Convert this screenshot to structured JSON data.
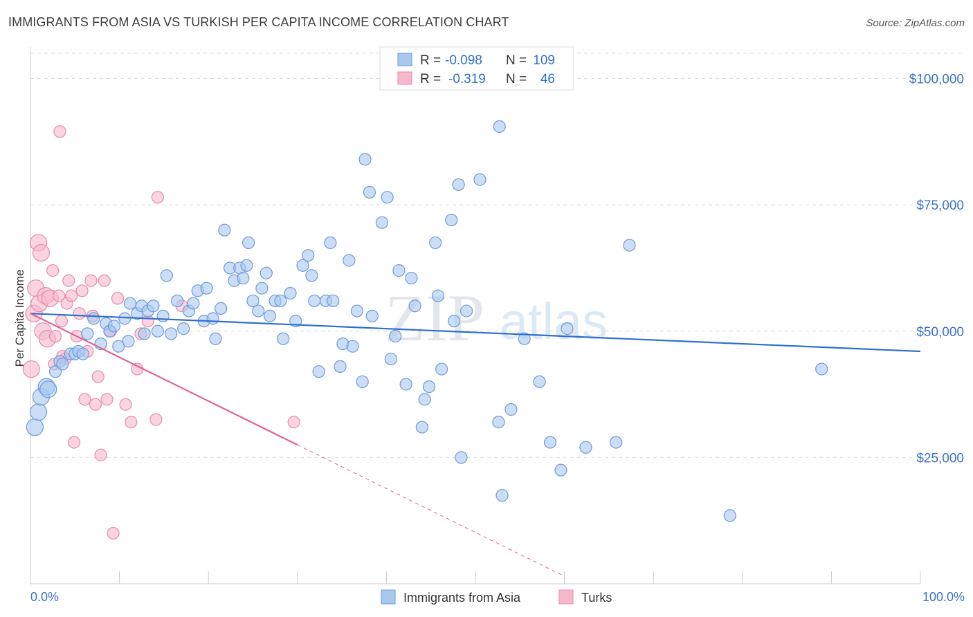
{
  "header": {
    "title": "IMMIGRANTS FROM ASIA VS TURKISH PER CAPITA INCOME CORRELATION CHART",
    "source": "Source: ZipAtlas.com"
  },
  "watermark": {
    "zip": "ZIP",
    "atlas": "atlas"
  },
  "colors": {
    "asia_fill": "#a9c8f0",
    "asia_stroke": "#6d9bdb",
    "asia_line": "#2f6fce",
    "turks_fill": "#f7b8cb",
    "turks_stroke": "#e88ba8",
    "turks_line": "#e0628f",
    "axis_text": "#3b73c8"
  },
  "chart_data": {
    "type": "scatter",
    "xlabel": "",
    "ylabel": "Per Capita Income",
    "xlim": [
      0,
      100
    ],
    "ylim": [
      0,
      105000
    ],
    "x_tick_labels": [
      "0.0%",
      "100.0%"
    ],
    "y_ticks": [
      25000,
      50000,
      75000,
      100000
    ],
    "y_tick_labels": [
      "$25,000",
      "$50,000",
      "$75,000",
      "$100,000"
    ],
    "grid": true,
    "legend_position": "top-center",
    "stats": [
      {
        "r_label": "R =",
        "r": "-0.098",
        "n_label": "N =",
        "n": "109"
      },
      {
        "r_label": "R =",
        "r": "-0.319",
        "n_label": "N =",
        "n": "46"
      }
    ],
    "series": [
      {
        "name": "Immigrants from Asia",
        "trend": {
          "x": [
            0,
            100
          ],
          "y": [
            53500,
            46000
          ]
        },
        "points": [
          [
            0.5,
            31000
          ],
          [
            0.9,
            34000
          ],
          [
            1.2,
            37000
          ],
          [
            1.8,
            39000
          ],
          [
            2.0,
            38500
          ],
          [
            2.8,
            42000
          ],
          [
            3.3,
            44000
          ],
          [
            3.6,
            43500
          ],
          [
            4.5,
            45500
          ],
          [
            5.0,
            45500
          ],
          [
            5.4,
            46000
          ],
          [
            5.9,
            45500
          ],
          [
            6.4,
            49500
          ],
          [
            7.1,
            52500
          ],
          [
            7.9,
            47500
          ],
          [
            8.5,
            51500
          ],
          [
            8.9,
            50000
          ],
          [
            9.4,
            51000
          ],
          [
            9.9,
            47000
          ],
          [
            10.6,
            52500
          ],
          [
            11.0,
            48000
          ],
          [
            11.2,
            55500
          ],
          [
            12.0,
            53500
          ],
          [
            12.5,
            55000
          ],
          [
            12.8,
            49500
          ],
          [
            13.2,
            54000
          ],
          [
            13.8,
            55000
          ],
          [
            14.3,
            50000
          ],
          [
            14.9,
            53000
          ],
          [
            15.3,
            61000
          ],
          [
            15.8,
            49500
          ],
          [
            16.5,
            56000
          ],
          [
            17.2,
            50500
          ],
          [
            17.8,
            54000
          ],
          [
            18.3,
            55500
          ],
          [
            18.8,
            58000
          ],
          [
            19.5,
            52000
          ],
          [
            19.8,
            58500
          ],
          [
            20.5,
            52500
          ],
          [
            20.8,
            48500
          ],
          [
            21.4,
            54500
          ],
          [
            21.8,
            70000
          ],
          [
            22.4,
            62500
          ],
          [
            22.9,
            60000
          ],
          [
            23.5,
            62500
          ],
          [
            23.9,
            60500
          ],
          [
            24.3,
            63000
          ],
          [
            24.5,
            67500
          ],
          [
            25.0,
            56000
          ],
          [
            25.6,
            54000
          ],
          [
            26.0,
            58500
          ],
          [
            26.5,
            61500
          ],
          [
            26.9,
            53000
          ],
          [
            27.5,
            56000
          ],
          [
            28.1,
            56000
          ],
          [
            28.4,
            48500
          ],
          [
            29.2,
            57500
          ],
          [
            29.8,
            52000
          ],
          [
            30.6,
            63000
          ],
          [
            31.2,
            65000
          ],
          [
            31.6,
            61000
          ],
          [
            31.9,
            56000
          ],
          [
            32.4,
            42000
          ],
          [
            33.2,
            56000
          ],
          [
            33.7,
            67500
          ],
          [
            34.0,
            56000
          ],
          [
            34.8,
            43000
          ],
          [
            35.1,
            47500
          ],
          [
            35.8,
            64000
          ],
          [
            36.2,
            47000
          ],
          [
            36.7,
            54000
          ],
          [
            37.3,
            40000
          ],
          [
            37.6,
            84000
          ],
          [
            38.1,
            77500
          ],
          [
            38.4,
            53000
          ],
          [
            39.5,
            71500
          ],
          [
            40.1,
            76500
          ],
          [
            40.5,
            44500
          ],
          [
            41.0,
            49000
          ],
          [
            41.4,
            62000
          ],
          [
            42.2,
            39500
          ],
          [
            42.8,
            60500
          ],
          [
            43.2,
            55000
          ],
          [
            44.0,
            31000
          ],
          [
            44.3,
            36500
          ],
          [
            44.8,
            39000
          ],
          [
            45.5,
            67500
          ],
          [
            45.8,
            57000
          ],
          [
            46.2,
            42500
          ],
          [
            47.3,
            72000
          ],
          [
            47.6,
            52000
          ],
          [
            48.1,
            79000
          ],
          [
            48.4,
            25000
          ],
          [
            50.5,
            80000
          ],
          [
            52.6,
            32000
          ],
          [
            52.7,
            90500
          ],
          [
            53.0,
            17500
          ],
          [
            54.0,
            34500
          ],
          [
            57.2,
            40000
          ],
          [
            58.4,
            28000
          ],
          [
            59.6,
            22500
          ],
          [
            62.4,
            27000
          ],
          [
            65.8,
            28000
          ],
          [
            67.3,
            67000
          ],
          [
            78.6,
            13500
          ],
          [
            88.9,
            42500
          ],
          [
            55.5,
            48500
          ],
          [
            60.3,
            50500
          ],
          [
            49.0,
            54000
          ]
        ]
      },
      {
        "name": "Turks",
        "trend": {
          "x": [
            0,
            30
          ],
          "y": [
            53500,
            27500
          ]
        },
        "trend_dashed": {
          "x": [
            30,
            60
          ],
          "y": [
            27500,
            1500
          ]
        },
        "points": [
          [
            0.1,
            42500
          ],
          [
            0.4,
            53500
          ],
          [
            0.6,
            58500
          ],
          [
            0.9,
            67500
          ],
          [
            1.0,
            55500
          ],
          [
            1.2,
            65500
          ],
          [
            1.4,
            50000
          ],
          [
            1.7,
            57000
          ],
          [
            1.9,
            48500
          ],
          [
            2.2,
            56500
          ],
          [
            2.5,
            62000
          ],
          [
            2.7,
            43500
          ],
          [
            2.8,
            49000
          ],
          [
            3.2,
            57000
          ],
          [
            3.5,
            52000
          ],
          [
            3.6,
            45000
          ],
          [
            3.9,
            44500
          ],
          [
            4.1,
            55500
          ],
          [
            4.3,
            60000
          ],
          [
            4.6,
            57000
          ],
          [
            4.9,
            28000
          ],
          [
            5.2,
            49000
          ],
          [
            5.5,
            53500
          ],
          [
            5.8,
            58000
          ],
          [
            6.1,
            36500
          ],
          [
            6.4,
            46000
          ],
          [
            6.8,
            60000
          ],
          [
            7.0,
            53000
          ],
          [
            7.3,
            35500
          ],
          [
            7.6,
            41000
          ],
          [
            7.9,
            25500
          ],
          [
            8.3,
            60000
          ],
          [
            8.6,
            36500
          ],
          [
            9.0,
            50000
          ],
          [
            9.3,
            10000
          ],
          [
            9.8,
            56500
          ],
          [
            10.7,
            35500
          ],
          [
            11.3,
            32000
          ],
          [
            12.0,
            42500
          ],
          [
            12.4,
            49500
          ],
          [
            13.2,
            52000
          ],
          [
            14.1,
            32500
          ],
          [
            14.3,
            76500
          ],
          [
            17.0,
            55000
          ],
          [
            29.6,
            32000
          ],
          [
            3.3,
            89500
          ]
        ]
      }
    ]
  }
}
